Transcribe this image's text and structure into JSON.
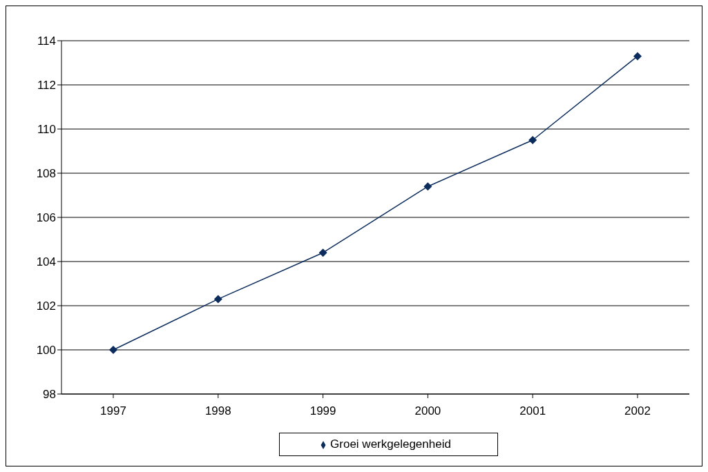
{
  "chart_data": {
    "type": "line",
    "categories": [
      "1997",
      "1998",
      "1999",
      "2000",
      "2001",
      "2002"
    ],
    "series": [
      {
        "name": "Groei werkgelegenheid",
        "color": "#0b2c5c",
        "values": [
          100,
          102.3,
          104.4,
          107.4,
          109.5,
          113.3
        ]
      }
    ],
    "ylim": [
      98,
      114
    ],
    "yticks": [
      98,
      100,
      102,
      104,
      106,
      108,
      110,
      112,
      114
    ],
    "grid": "y",
    "legend": "bottom",
    "marker": "diamond",
    "line_style": "solid"
  }
}
